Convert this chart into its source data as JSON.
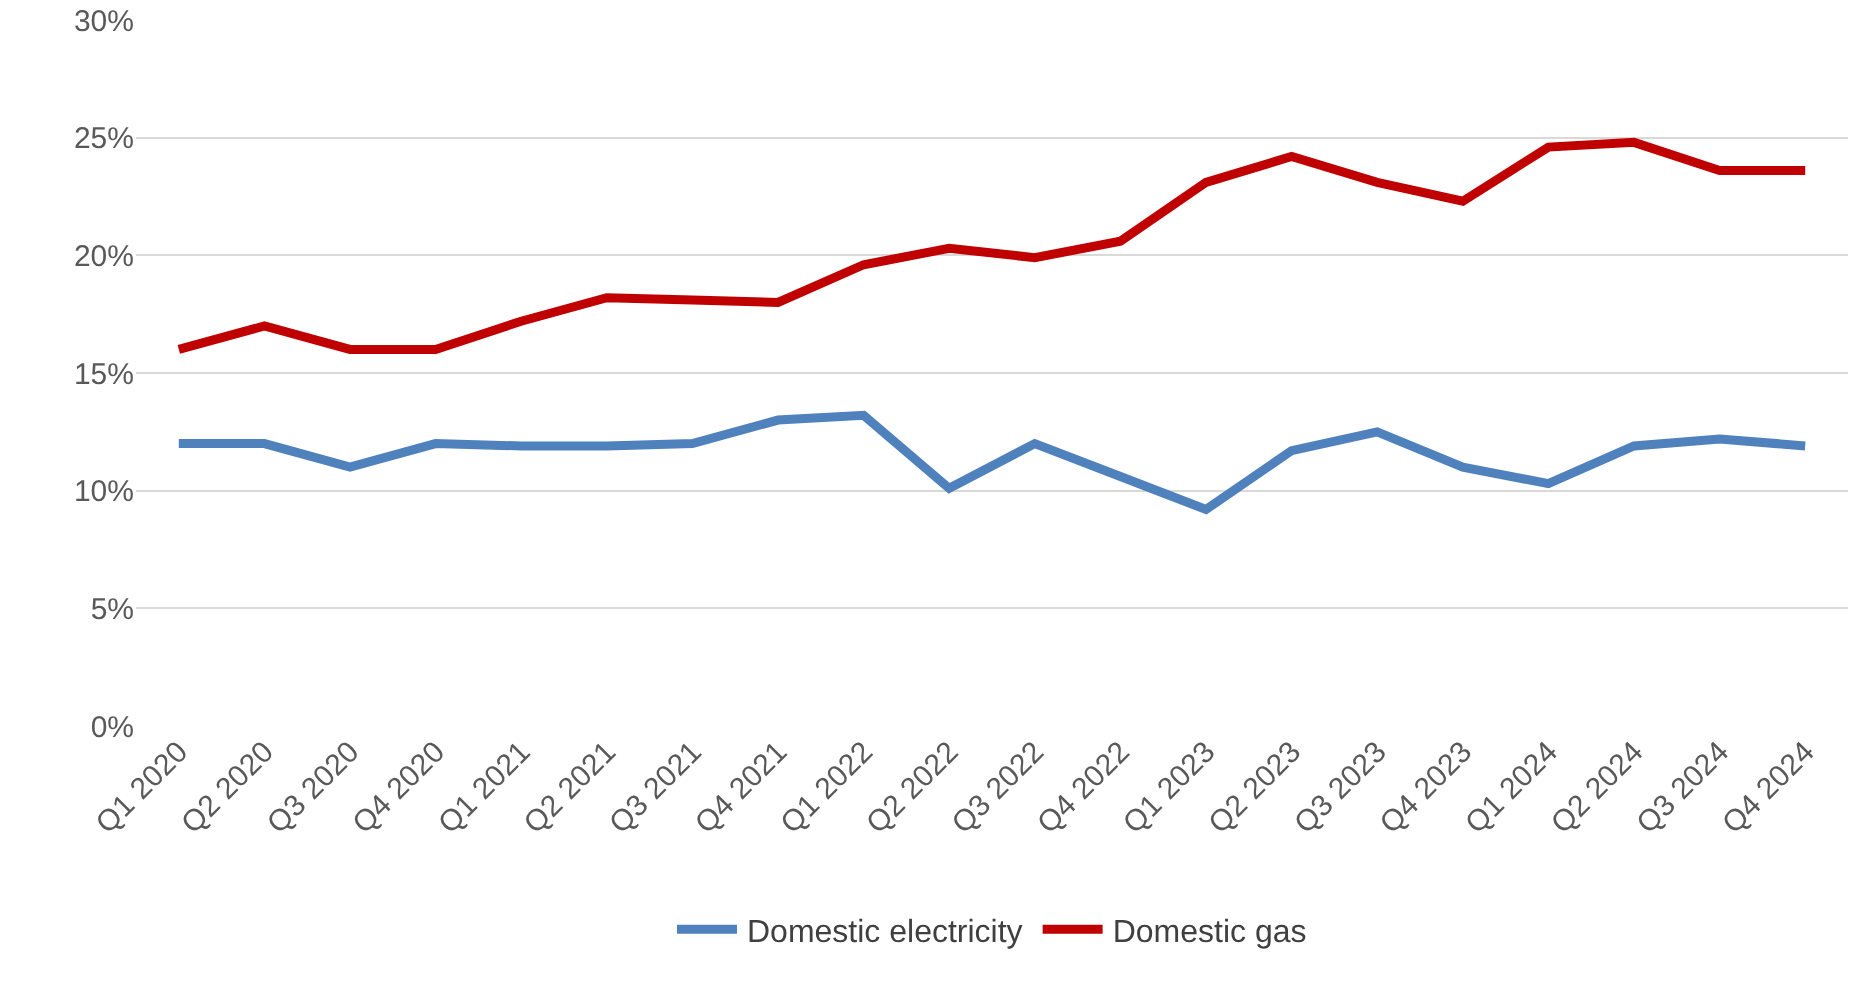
{
  "chart_data": {
    "type": "line",
    "categories": [
      "Q1 2020",
      "Q2 2020",
      "Q3 2020",
      "Q4 2020",
      "Q1 2021",
      "Q2 2021",
      "Q3 2021",
      "Q4 2021",
      "Q1 2022",
      "Q2 2022",
      "Q3 2022",
      "Q4 2022",
      "Q1 2023",
      "Q2 2023",
      "Q3 2023",
      "Q4 2023",
      "Q1 2024",
      "Q2 2024",
      "Q3 2024",
      "Q4 2024"
    ],
    "series": [
      {
        "name": "Domestic electricity",
        "color": "#4f81bd",
        "values": [
          12.0,
          12.0,
          11.0,
          12.0,
          11.9,
          11.9,
          12.0,
          13.0,
          13.2,
          10.1,
          12.0,
          10.6,
          9.2,
          11.7,
          12.5,
          11.0,
          10.3,
          11.9,
          12.2,
          11.9
        ]
      },
      {
        "name": "Domestic gas",
        "color": "#c00000",
        "values": [
          16.0,
          17.0,
          16.0,
          16.0,
          17.2,
          18.2,
          18.1,
          18.0,
          19.6,
          20.3,
          19.9,
          20.6,
          23.1,
          24.2,
          23.1,
          22.3,
          24.6,
          24.8,
          23.6,
          23.6
        ]
      }
    ],
    "ylim": [
      0,
      30
    ],
    "yticks": [
      {
        "value": 0,
        "label": "0%"
      },
      {
        "value": 5,
        "label": "5%"
      },
      {
        "value": 10,
        "label": "10%"
      },
      {
        "value": 15,
        "label": "15%"
      },
      {
        "value": 20,
        "label": "20%"
      },
      {
        "value": 25,
        "label": "25%"
      },
      {
        "value": 30,
        "label": "30%"
      }
    ],
    "grid": "y",
    "legend": "bottom",
    "marker": "none",
    "line_style": "solid"
  }
}
